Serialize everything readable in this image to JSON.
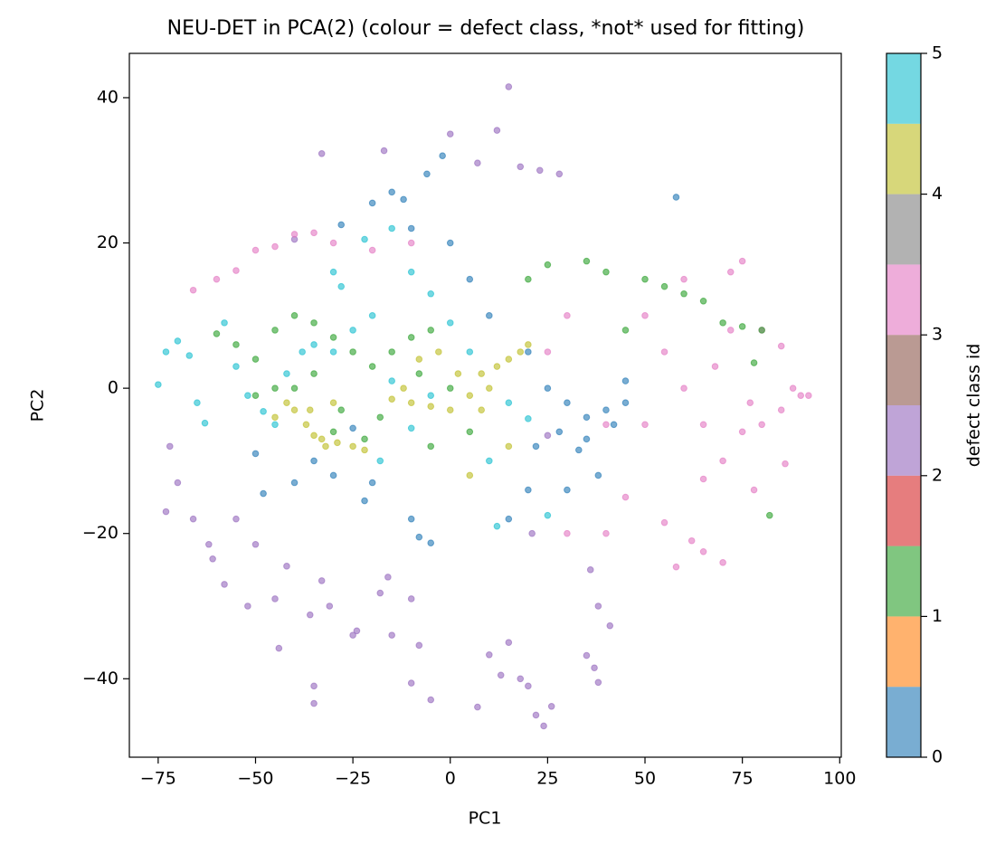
{
  "chart_data": {
    "type": "scatter",
    "title": "NEU-DET in PCA(2)  (colour = defect class, *not* used for fitting)",
    "xlabel": "PC1",
    "ylabel": "PC2",
    "xlim": [
      -82.4,
      100.4
    ],
    "ylim": [
      -50.8,
      46.1
    ],
    "xticks": [
      {
        "value": -75,
        "label": "−75"
      },
      {
        "value": -50,
        "label": "−50"
      },
      {
        "value": -25,
        "label": "−25"
      },
      0,
      25,
      50,
      75,
      100
    ],
    "yticks": [
      {
        "value": -40,
        "label": "−40"
      },
      {
        "value": -20,
        "label": "−20"
      },
      0,
      20,
      40
    ],
    "opacity": 0.6,
    "colorbar": {
      "label": "defect class id",
      "lim": [
        0,
        5
      ],
      "ticks": [
        0,
        1,
        2,
        3,
        4,
        5
      ],
      "colors": [
        "#1f77b4",
        "#ff7f0e",
        "#2ca02c",
        "#d62728",
        "#9467bd",
        "#8c564b",
        "#e377c2",
        "#7f7f7f",
        "#bcbd22",
        "#17becf"
      ]
    },
    "series": [
      {
        "class": 2,
        "x": [
          15,
          12,
          -33,
          -17,
          0,
          -40,
          -72,
          -73,
          -70,
          -66,
          -62,
          -61,
          -55,
          -50,
          -58,
          -52,
          -45,
          -42,
          -44,
          -36,
          -33,
          -31,
          -25,
          -18,
          -16,
          -10,
          -8,
          -10,
          -35,
          -35,
          -5,
          7,
          10,
          13,
          15,
          18,
          20,
          22,
          24,
          26,
          35,
          37,
          38,
          38,
          41,
          36,
          -24,
          -15,
          25,
          18,
          23,
          28,
          21,
          7
        ],
        "y": [
          41.5,
          35.5,
          32.3,
          32.7,
          35,
          20.5,
          -8,
          -17,
          -13,
          -18,
          -21.5,
          -23.5,
          -18,
          -21.5,
          -27,
          -30,
          -29,
          -24.5,
          -35.8,
          -31.2,
          -26.5,
          -30,
          -34,
          -28.2,
          -26,
          -29,
          -35.4,
          -40.6,
          -41,
          -43.4,
          -42.9,
          -43.9,
          -36.7,
          -39.5,
          -35,
          -40,
          -41,
          -45,
          -46.5,
          -43.8,
          -36.8,
          -38.5,
          -40.5,
          -30,
          -32.7,
          -25,
          -33.4,
          -34,
          -6.5,
          30.5,
          30,
          29.5,
          -20,
          31
        ]
      },
      {
        "class": 3,
        "x": [
          -66,
          -60,
          -55,
          -50,
          -45,
          -40,
          -35,
          -30,
          -20,
          -10,
          60,
          72,
          75,
          72,
          80,
          85,
          88,
          90,
          92,
          85,
          80,
          75,
          70,
          65,
          55,
          58,
          62,
          65,
          70,
          78,
          86,
          50,
          55,
          60,
          65,
          50,
          45,
          40,
          30,
          25,
          30,
          40,
          68,
          77
        ],
        "y": [
          13.5,
          15,
          16.2,
          19,
          19.5,
          21.2,
          21.4,
          20,
          19,
          20,
          15,
          16,
          17.5,
          8,
          8,
          5.8,
          0,
          -1,
          -1,
          -3,
          -5,
          -6,
          -10,
          -12.5,
          -18.5,
          -24.6,
          -21,
          -22.5,
          -24,
          -14,
          -10.4,
          10,
          5,
          0,
          -5,
          -5,
          -15,
          -20,
          -20,
          5,
          10,
          -5,
          3,
          -2
        ]
      },
      {
        "class": 0,
        "x": [
          -20,
          -15,
          -12,
          -6,
          -2,
          -28,
          -10,
          0,
          5,
          10,
          20,
          25,
          30,
          35,
          40,
          42,
          45,
          28,
          22,
          33,
          38,
          30,
          20,
          15,
          -10,
          -8,
          -5,
          -35,
          -40,
          -48,
          -50,
          -30,
          -20,
          -22,
          35,
          45,
          -25,
          58
        ],
        "y": [
          25.5,
          27,
          26,
          29.5,
          32,
          22.5,
          22,
          20,
          15,
          10,
          5,
          0,
          -2,
          -4,
          -3,
          -5,
          -2,
          -6,
          -8,
          -8.5,
          -12,
          -14,
          -14,
          -18,
          -18,
          -20.5,
          -21.3,
          -10,
          -13,
          -14.5,
          -9,
          -12,
          -13,
          -15.5,
          -7,
          1,
          -5.5,
          26.3
        ]
      },
      {
        "class": 1,
        "x": [
          -60,
          -55,
          -50,
          -45,
          -40,
          -35,
          -30,
          -25,
          -20,
          -15,
          -10,
          -5,
          -8,
          -35,
          -40,
          -28,
          -30,
          -18,
          -22,
          -50,
          -45,
          20,
          25,
          35,
          40,
          50,
          55,
          60,
          65,
          70,
          75,
          80,
          78,
          45,
          82,
          -5,
          5,
          0
        ],
        "y": [
          7.5,
          6,
          4,
          8,
          10,
          9,
          7,
          5,
          3,
          5,
          7,
          8,
          2,
          2,
          0,
          -3,
          -6,
          -4,
          -7,
          -1,
          0,
          15,
          17,
          17.5,
          16,
          15,
          14,
          13,
          12,
          9,
          8.5,
          8,
          3.5,
          8,
          -17.5,
          -8,
          -6,
          0
        ]
      },
      {
        "class": 4,
        "x": [
          -40,
          -37,
          -35,
          -32,
          -29,
          -25,
          -22,
          -42,
          -36,
          -30,
          -10,
          -5,
          0,
          5,
          8,
          10,
          -8,
          -3,
          15,
          18,
          20,
          12,
          2,
          -15,
          -45,
          -33,
          8,
          -12,
          5,
          15
        ],
        "y": [
          -3,
          -5,
          -6.5,
          -8,
          -7.5,
          -8,
          -8.5,
          -2,
          -3,
          -2,
          -2,
          -2.5,
          -3,
          -1,
          2,
          0,
          4,
          5,
          4,
          5,
          6,
          3,
          2,
          -1.5,
          -4,
          -7,
          -3,
          0,
          -12,
          -8
        ]
      },
      {
        "class": 5,
        "x": [
          -75,
          -73,
          -70,
          -67,
          -65,
          -63,
          -58,
          -55,
          -52,
          -48,
          -45,
          -42,
          -38,
          -35,
          -30,
          -25,
          -20,
          -15,
          -10,
          -5,
          -30,
          -28,
          -22,
          -15,
          -10,
          -5,
          0,
          5,
          15,
          20,
          12,
          25,
          10,
          -18
        ],
        "y": [
          0.5,
          5,
          6.5,
          4.5,
          -2,
          -4.8,
          9,
          3,
          -1,
          -3.2,
          -5,
          2,
          5,
          6,
          5,
          8,
          10,
          1,
          -5.5,
          -1,
          16,
          14,
          20.5,
          22,
          16,
          13,
          9,
          5,
          -2,
          -4.2,
          -19,
          -17.5,
          -10,
          -10
        ]
      }
    ]
  }
}
